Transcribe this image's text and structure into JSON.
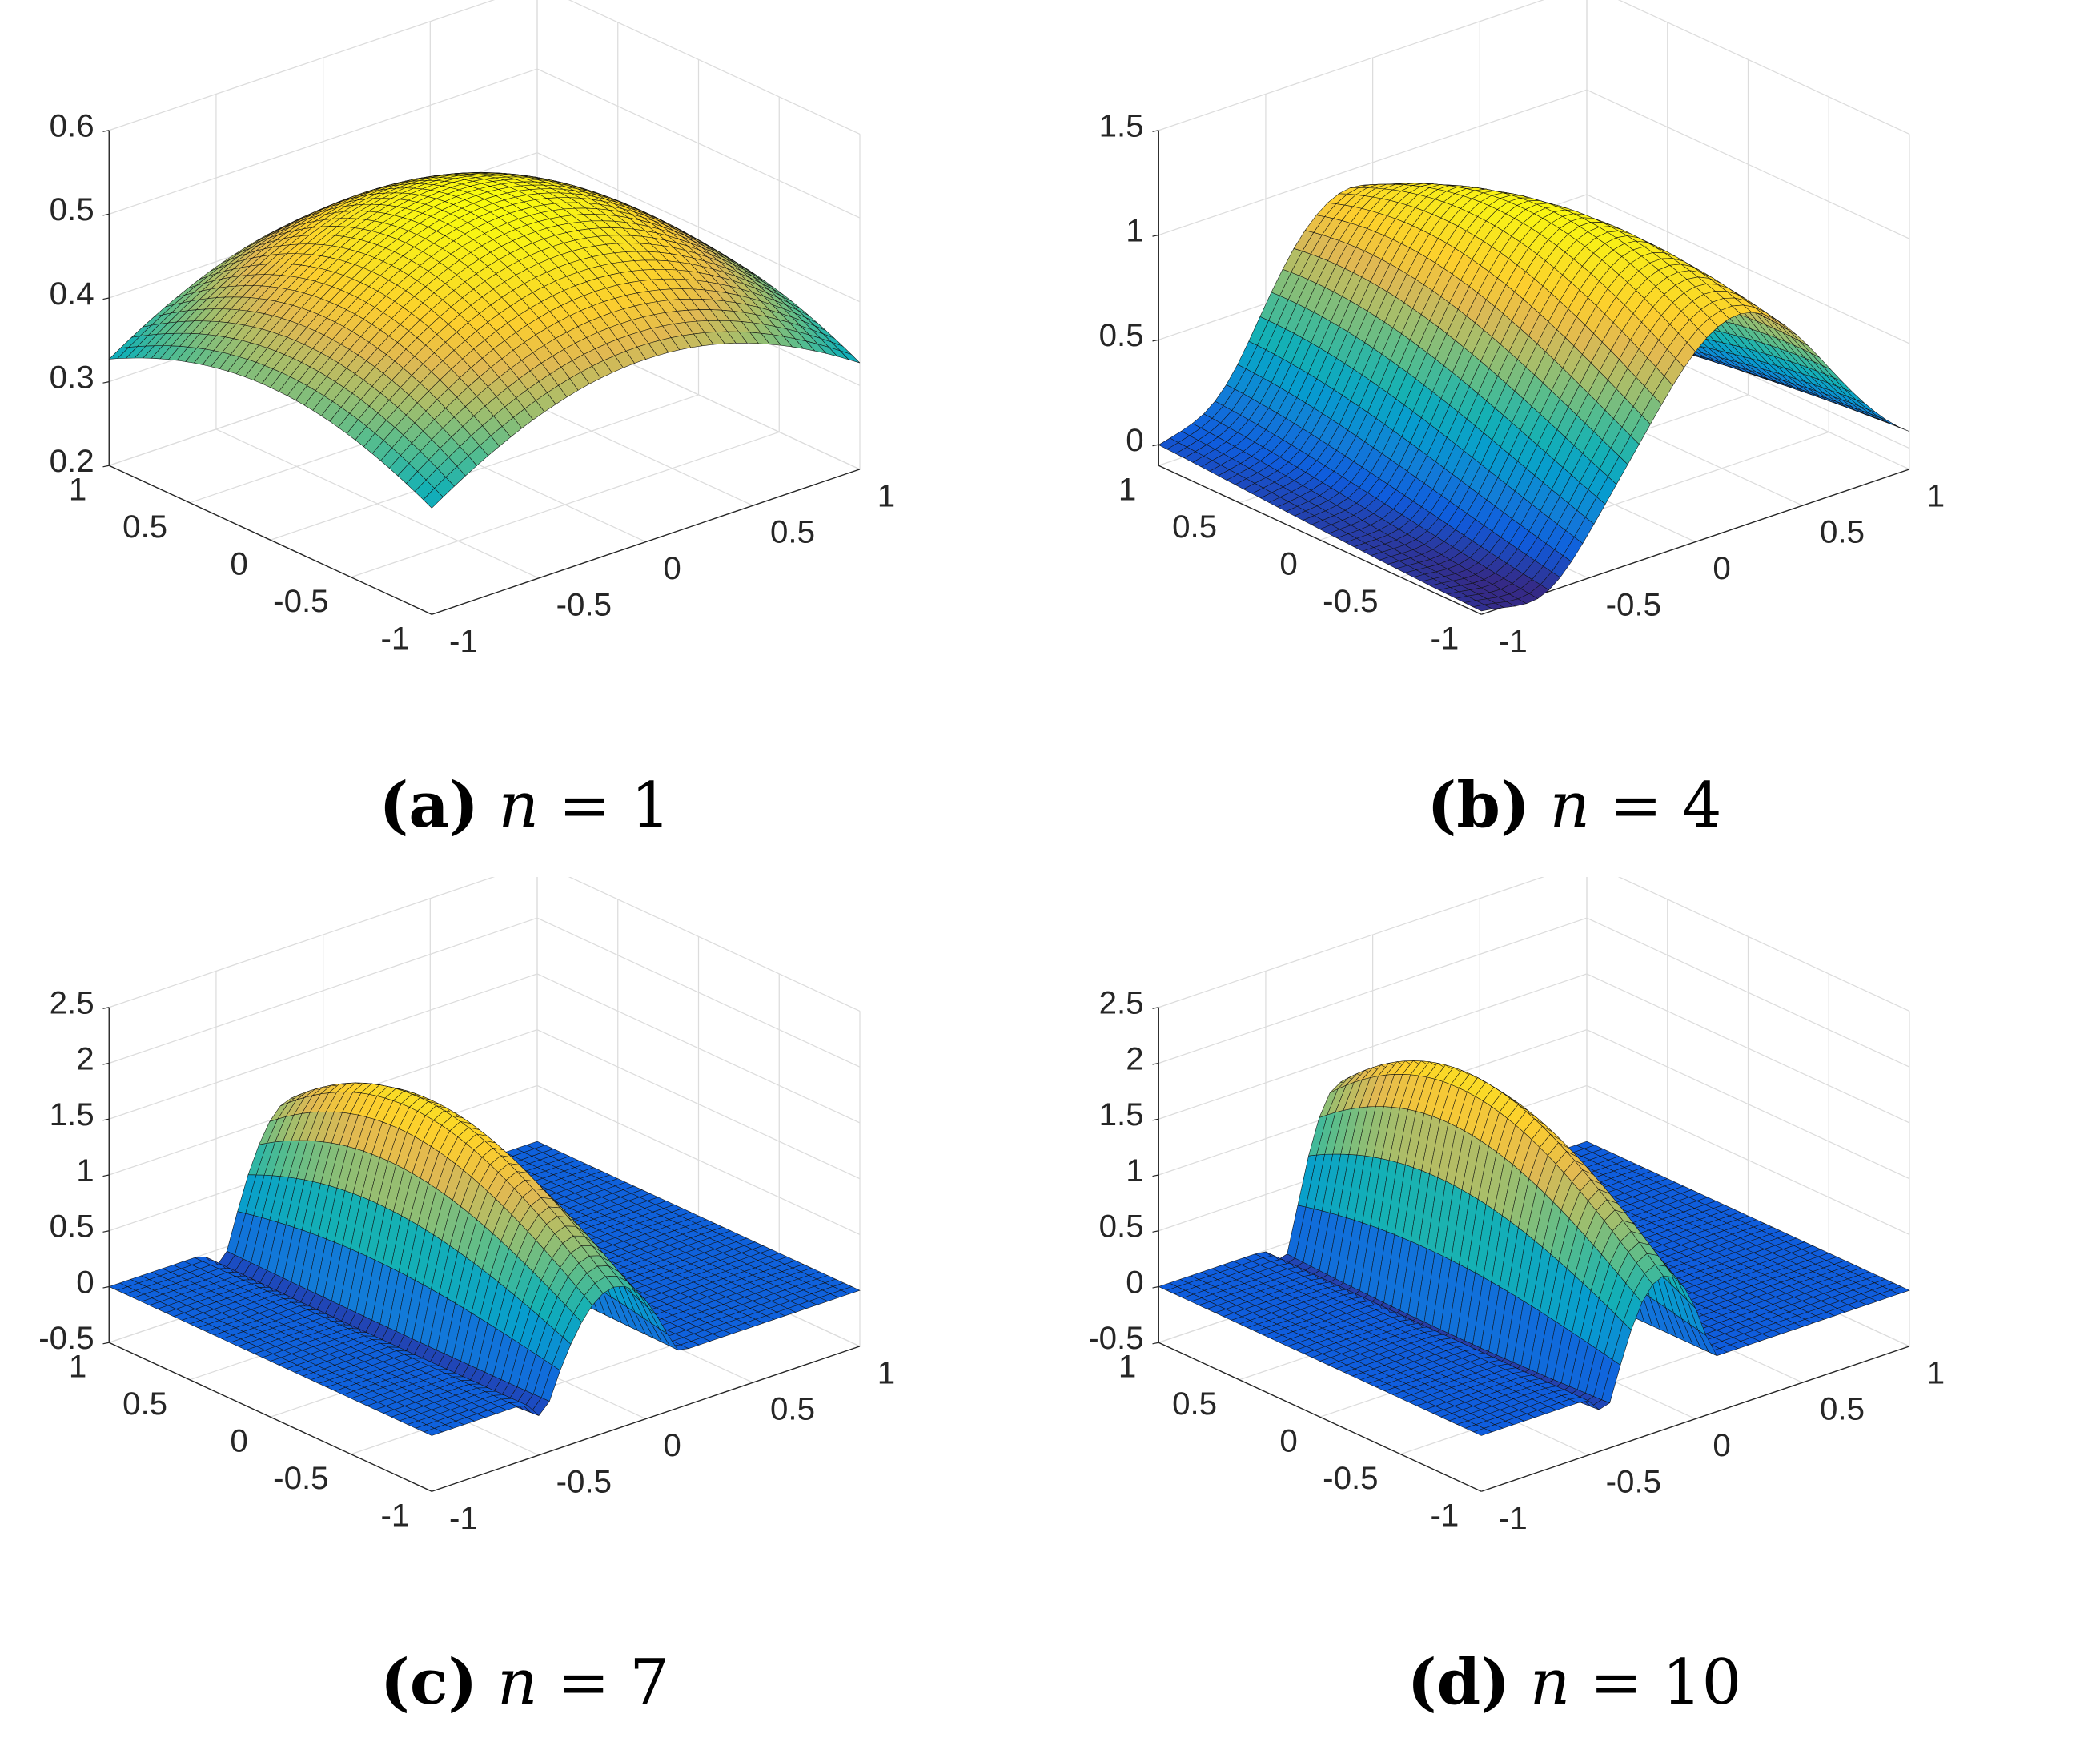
{
  "chart_data": [
    {
      "type": "surface",
      "caption": {
        "tag": "(a)",
        "variable": "n",
        "equals": "=",
        "value": "1"
      },
      "n": 1,
      "x": [
        -1,
        1
      ],
      "y": [
        -1,
        1
      ],
      "zlim": [
        0.2,
        0.6
      ],
      "zticks": [
        "0.2",
        "0.3",
        "0.4",
        "0.5",
        "0.6"
      ],
      "xticks": [
        "-1",
        "-0.5",
        "0",
        "0.5",
        "1"
      ],
      "yticks": [
        "-1",
        "-0.5",
        "0",
        "0.5",
        "1"
      ],
      "grid": true,
      "colormap": "parula",
      "surface_peak": 0.52,
      "surface_min": 0.22
    },
    {
      "type": "surface",
      "caption": {
        "tag": "(b)",
        "variable": "n",
        "equals": "=",
        "value": "4"
      },
      "n": 4,
      "x": [
        -1,
        1
      ],
      "y": [
        -1,
        1
      ],
      "zlim": [
        -0.1,
        1.5
      ],
      "zticks": [
        "0",
        "0.5",
        "1",
        "1.5"
      ],
      "xticks": [
        "-1",
        "-0.5",
        "0",
        "0.5",
        "1"
      ],
      "yticks": [
        "-1",
        "-0.5",
        "0",
        "0.5",
        "1"
      ],
      "grid": true,
      "colormap": "parula",
      "surface_peak": 1.15,
      "surface_min": -0.1
    },
    {
      "type": "surface",
      "caption": {
        "tag": "(c)",
        "variable": "n",
        "equals": "=",
        "value": "7"
      },
      "n": 7,
      "x": [
        -1,
        1
      ],
      "y": [
        -1,
        1
      ],
      "zlim": [
        -0.5,
        2.5
      ],
      "zticks": [
        "-0.5",
        "0",
        "0.5",
        "1",
        "1.5",
        "2",
        "2.5"
      ],
      "xticks": [
        "-1",
        "-0.5",
        "0",
        "0.5",
        "1"
      ],
      "yticks": [
        "-1",
        "-0.5",
        "0",
        "0.5",
        "1"
      ],
      "grid": true,
      "colormap": "parula",
      "surface_peak": 1.95,
      "surface_min": -0.25
    },
    {
      "type": "surface",
      "caption": {
        "tag": "(d)",
        "variable": "n",
        "equals": "=",
        "value": "10"
      },
      "n": 10,
      "x": [
        -1,
        1
      ],
      "y": [
        -1,
        1
      ],
      "zlim": [
        -0.5,
        2.5
      ],
      "zticks": [
        "-0.5",
        "0",
        "0.5",
        "1",
        "1.5",
        "2",
        "2.5"
      ],
      "xticks": [
        "-1",
        "-0.5",
        "0",
        "0.5",
        "1"
      ],
      "yticks": [
        "-1",
        "-0.5",
        "0",
        "0.5",
        "1"
      ],
      "grid": true,
      "colormap": "parula",
      "surface_peak": 2.2,
      "surface_min": -0.25
    }
  ]
}
